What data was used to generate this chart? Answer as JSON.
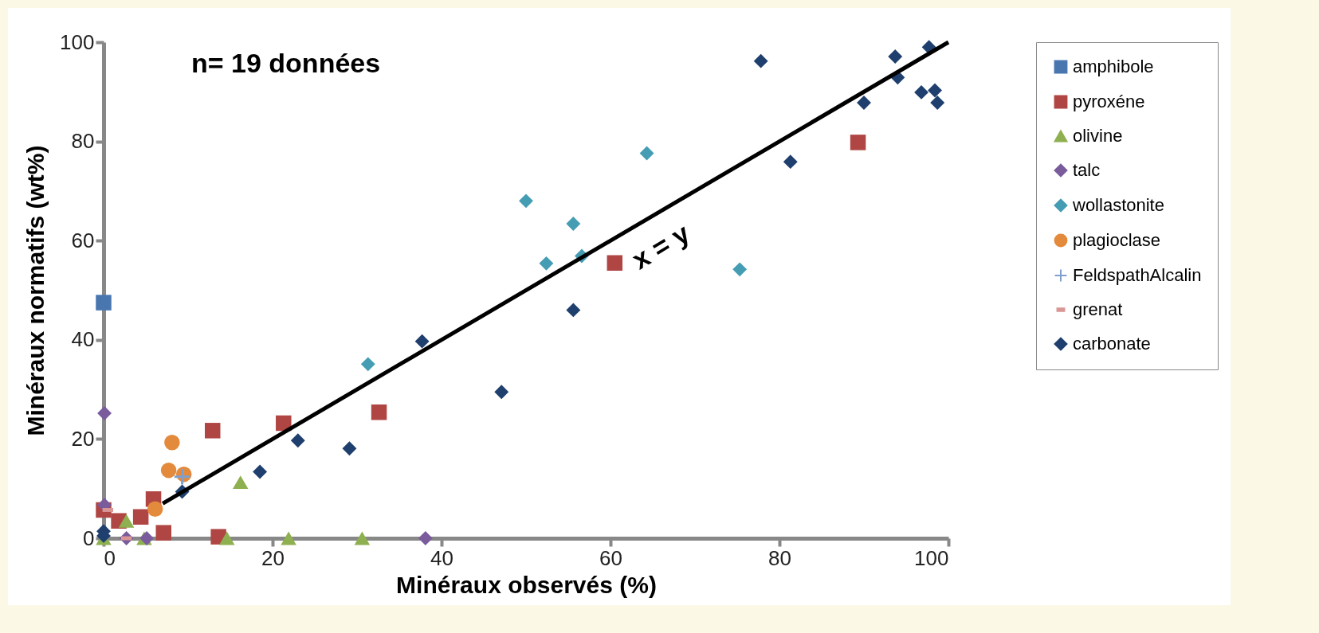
{
  "chart_data": {
    "type": "scatter",
    "xlabel": "Minéraux observés (%)",
    "ylabel": "Minéraux normatifs (wt%)",
    "xlim": [
      0,
      100
    ],
    "ylim": [
      0,
      100
    ],
    "xticks": [
      0,
      20,
      40,
      60,
      80,
      100
    ],
    "yticks": [
      0,
      20,
      40,
      60,
      80,
      100
    ],
    "grid": false,
    "legend": "right",
    "annotations": [
      "n= 19 données",
      "x = y"
    ],
    "series": [
      {
        "name": "amphibole",
        "color": "#4a76b0",
        "marker": "square",
        "x": [
          0
        ],
        "values": [
          47.5
        ]
      },
      {
        "name": "pyroxéne",
        "color": "#b04644",
        "marker": "square",
        "x": [
          0,
          1.8,
          4.4,
          5.9,
          7.1,
          12.9,
          13.6,
          21.3,
          32.6,
          60.5,
          89.3
        ],
        "values": [
          5.7,
          3.5,
          4.3,
          7.9,
          1.1,
          21.7,
          0.3,
          23.2,
          25.4,
          55.5,
          79.8
        ]
      },
      {
        "name": "olivine",
        "color": "#8fb050",
        "marker": "triangle",
        "x": [
          0,
          2.7,
          4.8,
          14.6,
          16.2,
          21.9,
          30.6
        ],
        "values": [
          0,
          3.5,
          0,
          0,
          11.3,
          0,
          0
        ]
      },
      {
        "name": "talc",
        "color": "#7a5c9c",
        "marker": "diamond",
        "x": [
          0.1,
          0.1,
          2.7,
          5.1,
          38.1
        ],
        "values": [
          25.2,
          6.7,
          0,
          0,
          0
        ]
      },
      {
        "name": "wollastonite",
        "color": "#459db4",
        "marker": "diamond",
        "x": [
          31.3,
          50.0,
          52.4,
          55.6,
          56.6,
          64.3,
          75.3
        ],
        "values": [
          35.1,
          68.0,
          55.4,
          63.4,
          56.9,
          77.6,
          54.2
        ]
      },
      {
        "name": "plagioclase",
        "color": "#e38a3c",
        "marker": "circle",
        "x": [
          6.1,
          7.7,
          8.1,
          9.5
        ],
        "values": [
          5.9,
          13.7,
          19.3,
          12.9
        ]
      },
      {
        "name": "FeldspathAlcalin",
        "color": "#7f9fcf",
        "marker": "cross",
        "x": [
          9.3
        ],
        "values": [
          12.4
        ]
      },
      {
        "name": "grenat",
        "color": "#d99694",
        "x": [
          0.5,
          2.7
        ],
        "values": [
          5.7,
          0
        ]
      },
      {
        "name": "carbonate",
        "color": "#1f3f6e",
        "marker": "diamond",
        "x": [
          0,
          0,
          9.3,
          18.5,
          23.0,
          29.1,
          37.7,
          47.1,
          55.6,
          77.8,
          81.3,
          90.0,
          93.7,
          94.0,
          96.8,
          97.7,
          98.4,
          98.7
        ],
        "values": [
          1.4,
          0.5,
          9.4,
          13.4,
          19.7,
          18.1,
          39.7,
          29.5,
          46.0,
          96.2,
          75.9,
          87.8,
          97.1,
          92.9,
          89.9,
          99.0,
          90.3,
          87.8
        ]
      },
      {
        "type": "line",
        "color": "#000000",
        "x": [
          7,
          100
        ],
        "values": [
          7,
          100
        ]
      }
    ]
  }
}
